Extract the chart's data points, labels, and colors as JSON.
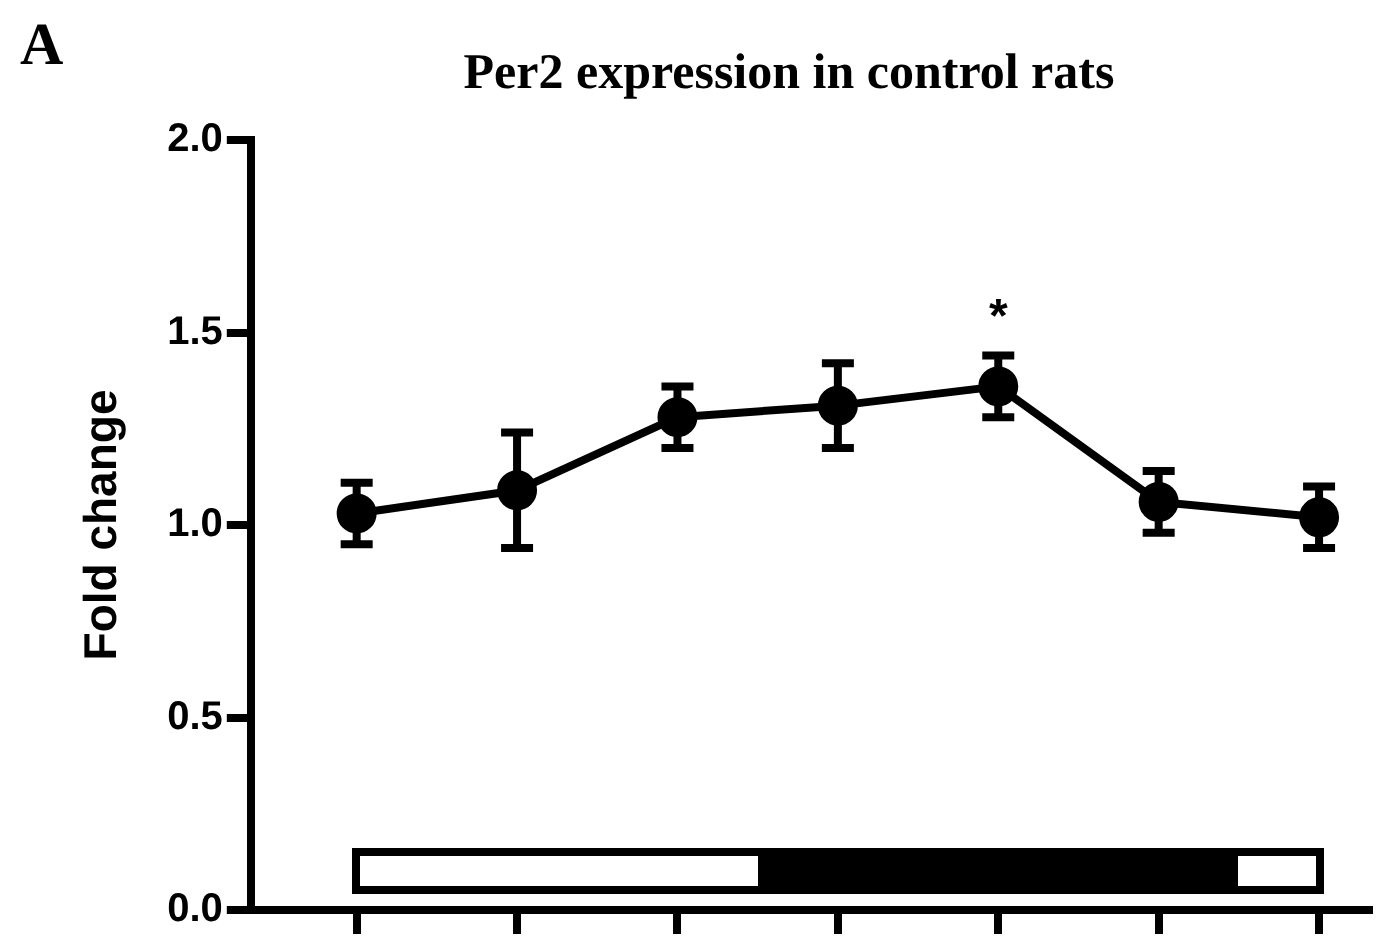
{
  "chart_data": {
    "type": "line",
    "title": "Per2 expression in control rats",
    "ylabel": "Fold change",
    "categories": [
      null,
      null,
      null,
      null,
      null,
      null,
      null
    ],
    "series": [
      {
        "color": "#000000",
        "values": [
          1.03,
          1.09,
          1.28,
          1.31,
          1.36,
          1.06,
          1.02
        ],
        "errors": [
          0.08,
          0.15,
          0.08,
          0.11,
          0.08,
          0.08,
          0.08
        ]
      }
    ],
    "ylim": [
      0,
      2
    ],
    "yticks": [
      {
        "value": 0,
        "label": "0.0"
      },
      {
        "value": 0.5,
        "label": "0.5"
      },
      {
        "value": 1,
        "label": "1.0"
      },
      {
        "value": 1.5,
        "label": "1.5"
      },
      {
        "value": 2,
        "label": "2.0"
      }
    ],
    "annotations": [
      "A",
      "*"
    ],
    "tick_labels": "y",
    "grid": false,
    "legend": false,
    "marker": "circle",
    "line_style": "solid"
  }
}
